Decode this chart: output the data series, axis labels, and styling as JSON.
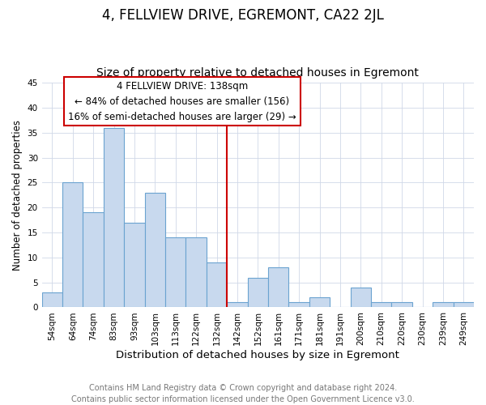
{
  "title": "4, FELLVIEW DRIVE, EGREMONT, CA22 2JL",
  "subtitle": "Size of property relative to detached houses in Egremont",
  "xlabel": "Distribution of detached houses by size in Egremont",
  "ylabel": "Number of detached properties",
  "bar_labels": [
    "54sqm",
    "64sqm",
    "74sqm",
    "83sqm",
    "93sqm",
    "103sqm",
    "113sqm",
    "122sqm",
    "132sqm",
    "142sqm",
    "152sqm",
    "161sqm",
    "171sqm",
    "181sqm",
    "191sqm",
    "200sqm",
    "210sqm",
    "220sqm",
    "230sqm",
    "239sqm",
    "249sqm"
  ],
  "bar_values": [
    3,
    25,
    19,
    36,
    17,
    23,
    14,
    14,
    9,
    1,
    6,
    8,
    1,
    2,
    0,
    4,
    1,
    1,
    0,
    1,
    1
  ],
  "bar_color": "#c8d9ee",
  "bar_edge_color": "#6ba3d0",
  "reference_line_index": 9,
  "annotation_title": "4 FELLVIEW DRIVE: 138sqm",
  "annotation_line1": "← 84% of detached houses are smaller (156)",
  "annotation_line2": "16% of semi-detached houses are larger (29) →",
  "ylim": [
    0,
    45
  ],
  "yticks": [
    0,
    5,
    10,
    15,
    20,
    25,
    30,
    35,
    40,
    45
  ],
  "ref_line_color": "#cc0000",
  "annotation_box_color": "#ffffff",
  "annotation_box_edge": "#cc0000",
  "footer_line1": "Contains HM Land Registry data © Crown copyright and database right 2024.",
  "footer_line2": "Contains public sector information licensed under the Open Government Licence v3.0.",
  "title_fontsize": 12,
  "subtitle_fontsize": 10,
  "xlabel_fontsize": 9.5,
  "ylabel_fontsize": 8.5,
  "tick_fontsize": 7.5,
  "footer_fontsize": 7,
  "annotation_fontsize": 8.5
}
